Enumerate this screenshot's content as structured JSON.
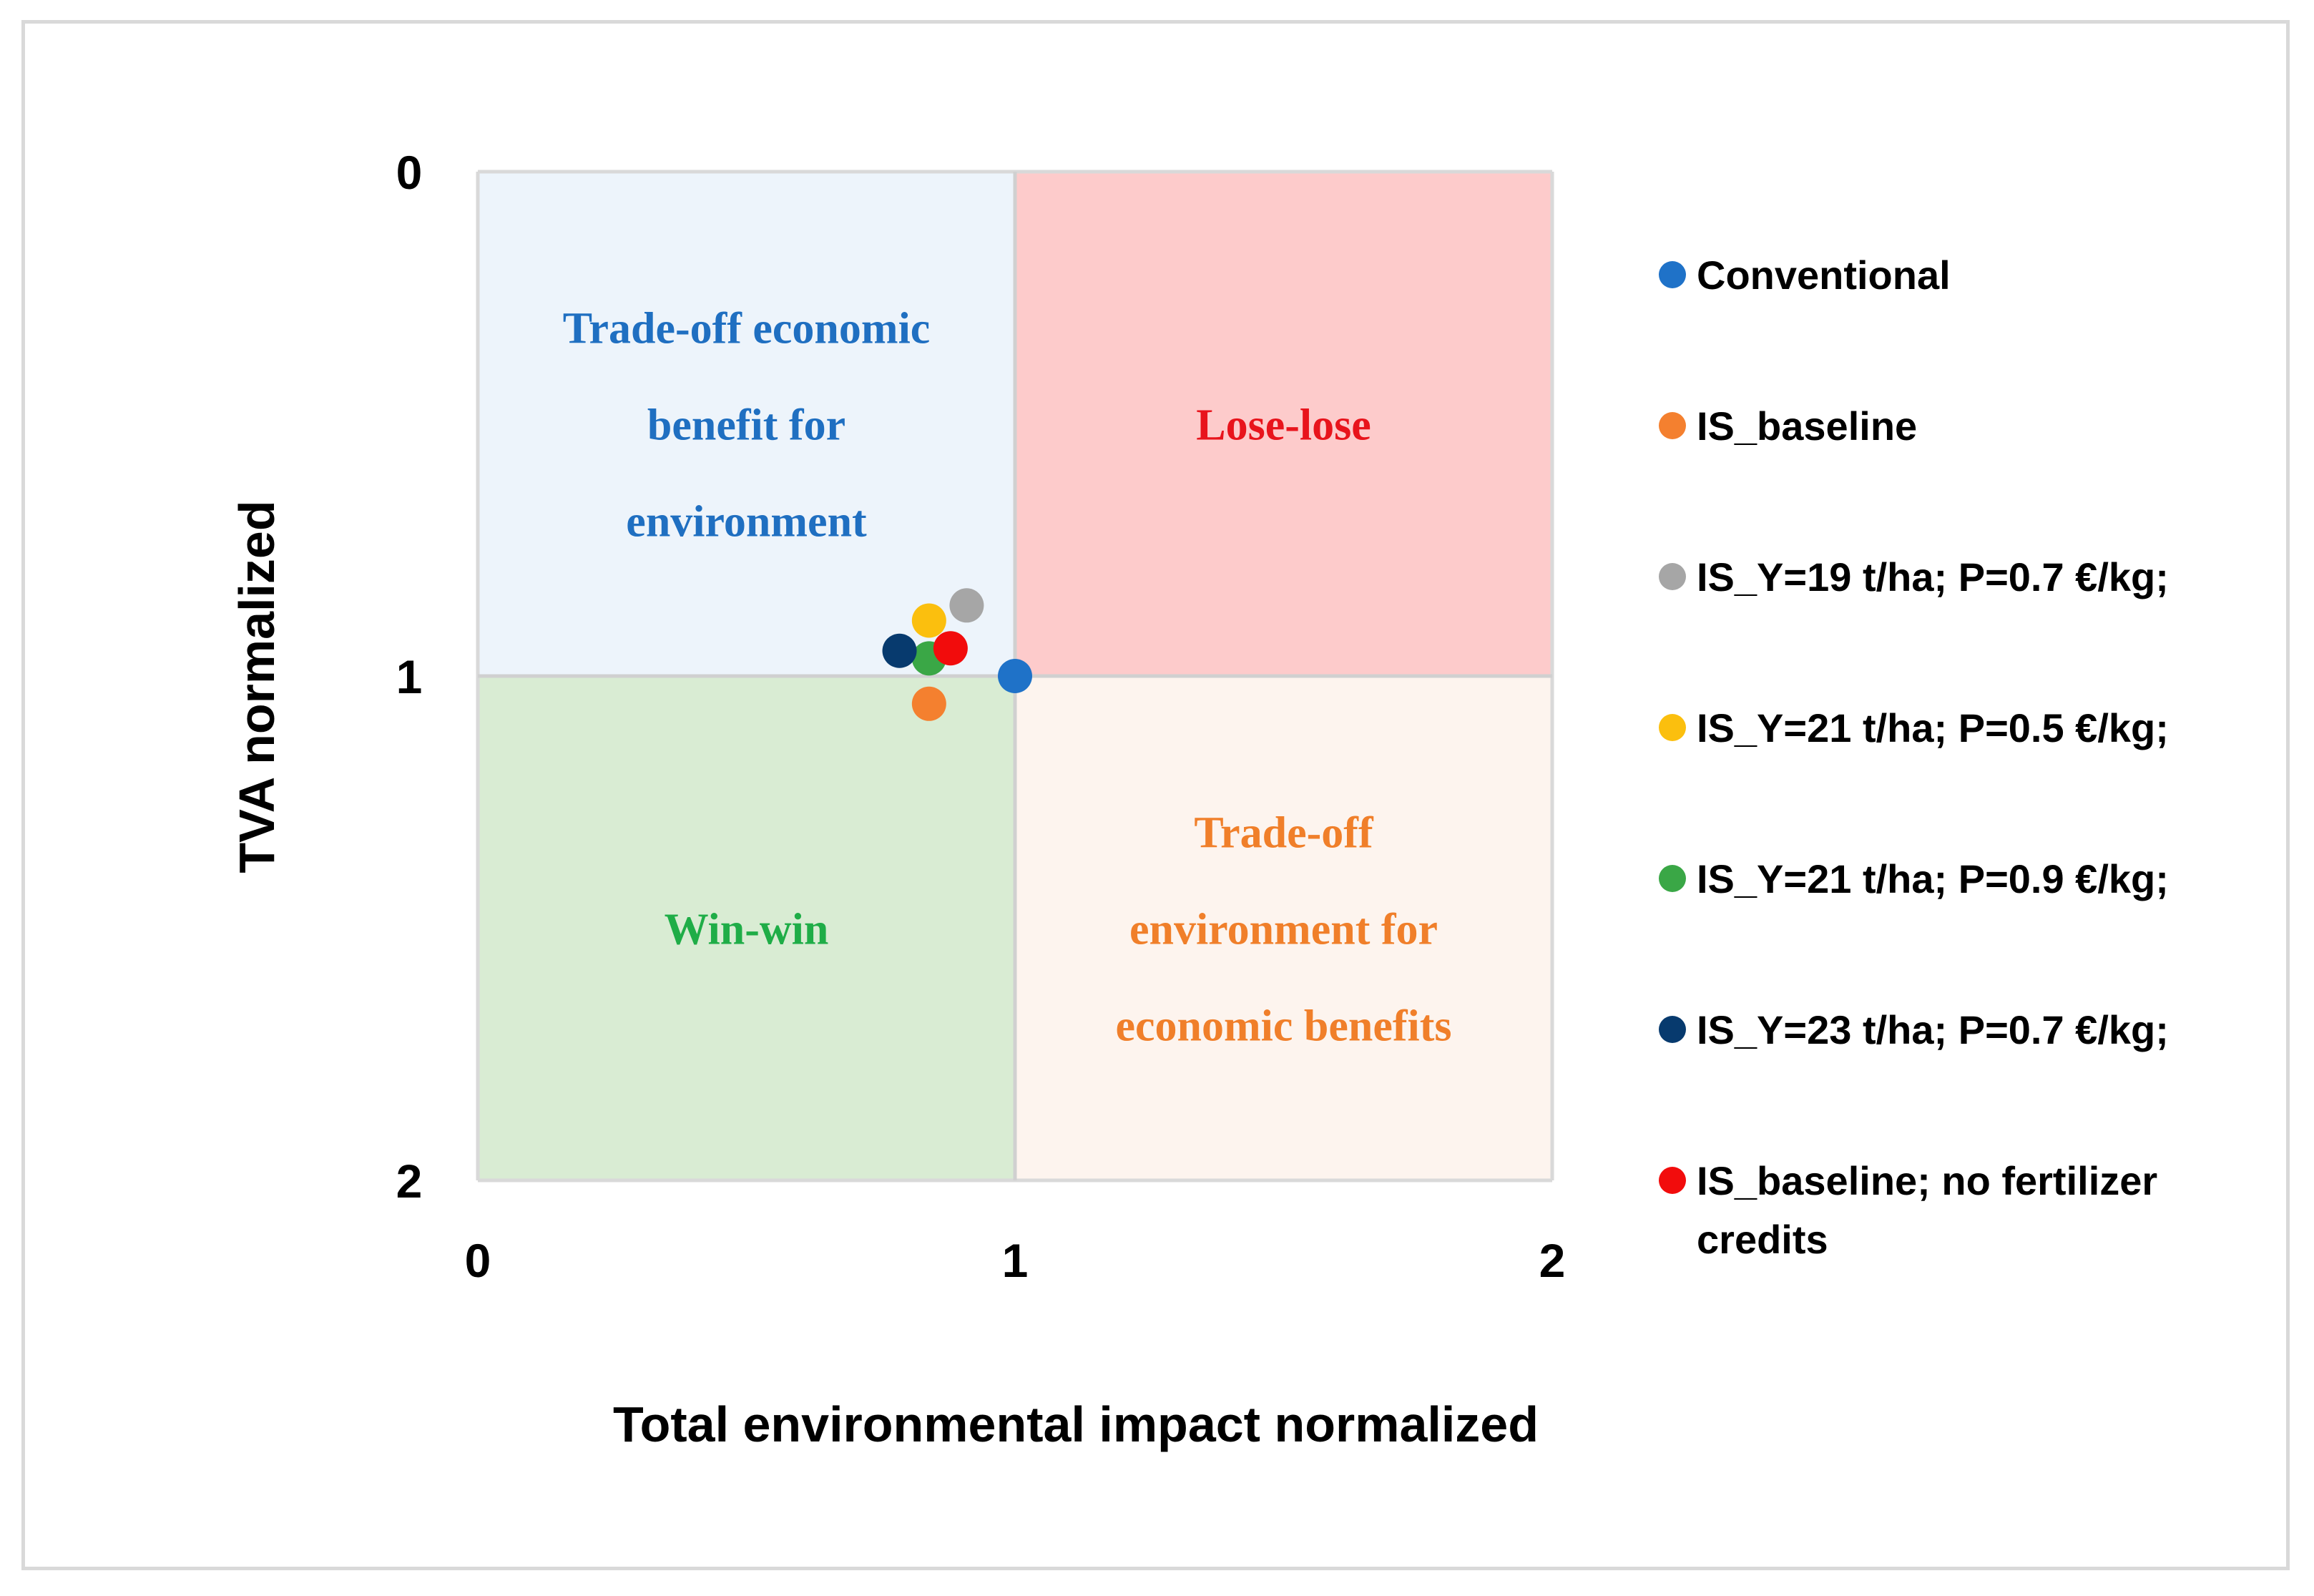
{
  "chart_data": {
    "type": "scatter",
    "xlabel": "Total environmental impact normalized",
    "ylabel": "TVA normalized",
    "xlim": [
      0,
      2
    ],
    "ylim": [
      0,
      2
    ],
    "y_inverted": true,
    "x_ticks": [
      "0",
      "1",
      "2"
    ],
    "y_ticks": [
      "0",
      "1",
      "2"
    ],
    "grid": false,
    "legend_position": "right",
    "quadrants": [
      {
        "name": "trade-off-economic",
        "lines": [
          "Trade-off economic",
          "benefit for",
          "environment"
        ],
        "fill": "#edf4fb",
        "text_color": "#1f6fc1",
        "x_range": [
          0,
          1
        ],
        "y_range": [
          0,
          1
        ]
      },
      {
        "name": "lose-lose",
        "lines": [
          "Lose-lose"
        ],
        "fill": "#fdcbcb",
        "text_color": "#e8141c",
        "x_range": [
          1,
          2
        ],
        "y_range": [
          0,
          1
        ]
      },
      {
        "name": "win-win",
        "lines": [
          "Win-win"
        ],
        "fill": "#d9ecd3",
        "text_color": "#1fad47",
        "x_range": [
          0,
          1
        ],
        "y_range": [
          1,
          2
        ]
      },
      {
        "name": "trade-off-environment",
        "lines": [
          "Trade-off",
          "environment for",
          "economic benefits"
        ],
        "fill": "#fdf4ee",
        "text_color": "#f07f2a",
        "x_range": [
          1,
          2
        ],
        "y_range": [
          1,
          2
        ]
      }
    ],
    "series": [
      {
        "name": "Conventional",
        "legend_lines": [
          "Conventional"
        ],
        "color": "#1f72c8",
        "x": 1.0,
        "y": 1.0
      },
      {
        "name": "IS_baseline",
        "legend_lines": [
          "IS_baseline"
        ],
        "color": "#f4802f",
        "x": 0.84,
        "y": 1.055
      },
      {
        "name": "IS_Y=19 t/ha; P=0.7 €/kg;",
        "legend_lines": [
          "IS_Y=19 t/ha; P=0.7 €/kg;"
        ],
        "color": "#a6a6a6",
        "x": 0.91,
        "y": 0.86
      },
      {
        "name": "IS_Y=21 t/ha; P=0.5 €/kg;",
        "legend_lines": [
          "IS_Y=21 t/ha; P=0.5 €/kg;"
        ],
        "color": "#fbbf0e",
        "x": 0.84,
        "y": 0.89
      },
      {
        "name": "IS_Y=21 t/ha; P=0.9 €/kg;",
        "legend_lines": [
          "IS_Y=21 t/ha; P=0.9 €/kg;"
        ],
        "color": "#3aa746",
        "x": 0.84,
        "y": 0.965
      },
      {
        "name": "IS_Y=23 t/ha; P=0.7 €/kg;",
        "legend_lines": [
          "IS_Y=23 t/ha; P=0.7 €/kg;"
        ],
        "color": "#073a6e",
        "x": 0.785,
        "y": 0.95
      },
      {
        "name": "IS_baseline; no fertilizer credits",
        "legend_lines": [
          "IS_baseline; no fertilizer",
          "credits"
        ],
        "color": "#f20c0c",
        "x": 0.88,
        "y": 0.945
      }
    ]
  }
}
